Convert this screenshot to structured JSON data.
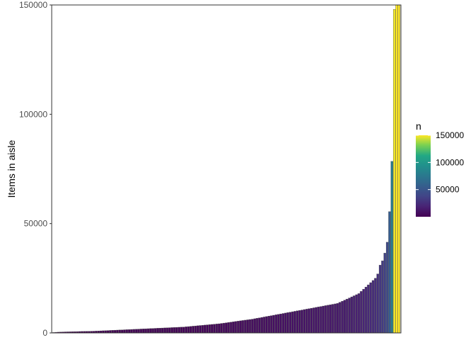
{
  "chart_data": {
    "type": "bar",
    "ylabel": "Items in aisle",
    "xlabel": "",
    "ylim": [
      0,
      150000
    ],
    "yticks": [
      0,
      50000,
      100000,
      150000
    ],
    "x_ticks_shown": false,
    "grid": false,
    "legend": {
      "title": "n",
      "type": "colorbar",
      "palette": "viridis",
      "ticks": [
        50000,
        100000,
        150000
      ],
      "range": [
        0,
        150000
      ],
      "placement": "right"
    },
    "values": [
      200,
      300,
      350,
      400,
      450,
      480,
      500,
      520,
      550,
      600,
      620,
      650,
      680,
      700,
      720,
      750,
      780,
      800,
      850,
      900,
      950,
      1000,
      1050,
      1100,
      1150,
      1200,
      1250,
      1300,
      1350,
      1400,
      1450,
      1500,
      1550,
      1600,
      1650,
      1700,
      1750,
      1800,
      1850,
      1900,
      1950,
      2000,
      2050,
      2100,
      2150,
      2200,
      2250,
      2300,
      2350,
      2400,
      2450,
      2500,
      2550,
      2600,
      2650,
      2700,
      2800,
      2900,
      3000,
      3100,
      3200,
      3300,
      3400,
      3500,
      3600,
      3700,
      3800,
      3900,
      4000,
      4100,
      4200,
      4350,
      4500,
      4650,
      4800,
      4950,
      5100,
      5250,
      5400,
      5550,
      5700,
      5850,
      6000,
      6150,
      6300,
      6500,
      6700,
      6900,
      7100,
      7300,
      7500,
      7700,
      7900,
      8100,
      8300,
      8500,
      8700,
      8900,
      9100,
      9300,
      9500,
      9700,
      9900,
      10100,
      10300,
      10500,
      10700,
      10900,
      11100,
      11300,
      11500,
      11700,
      11900,
      12100,
      12300,
      12500,
      12700,
      12900,
      13100,
      13300,
      13500,
      14000,
      14500,
      15000,
      15500,
      16000,
      16500,
      17000,
      17500,
      18000,
      19000,
      20000,
      21000,
      22000,
      23000,
      24000,
      25000,
      27000,
      31000,
      33000,
      36500,
      41500,
      55500,
      78500,
      148000,
      151000,
      152000
    ]
  }
}
